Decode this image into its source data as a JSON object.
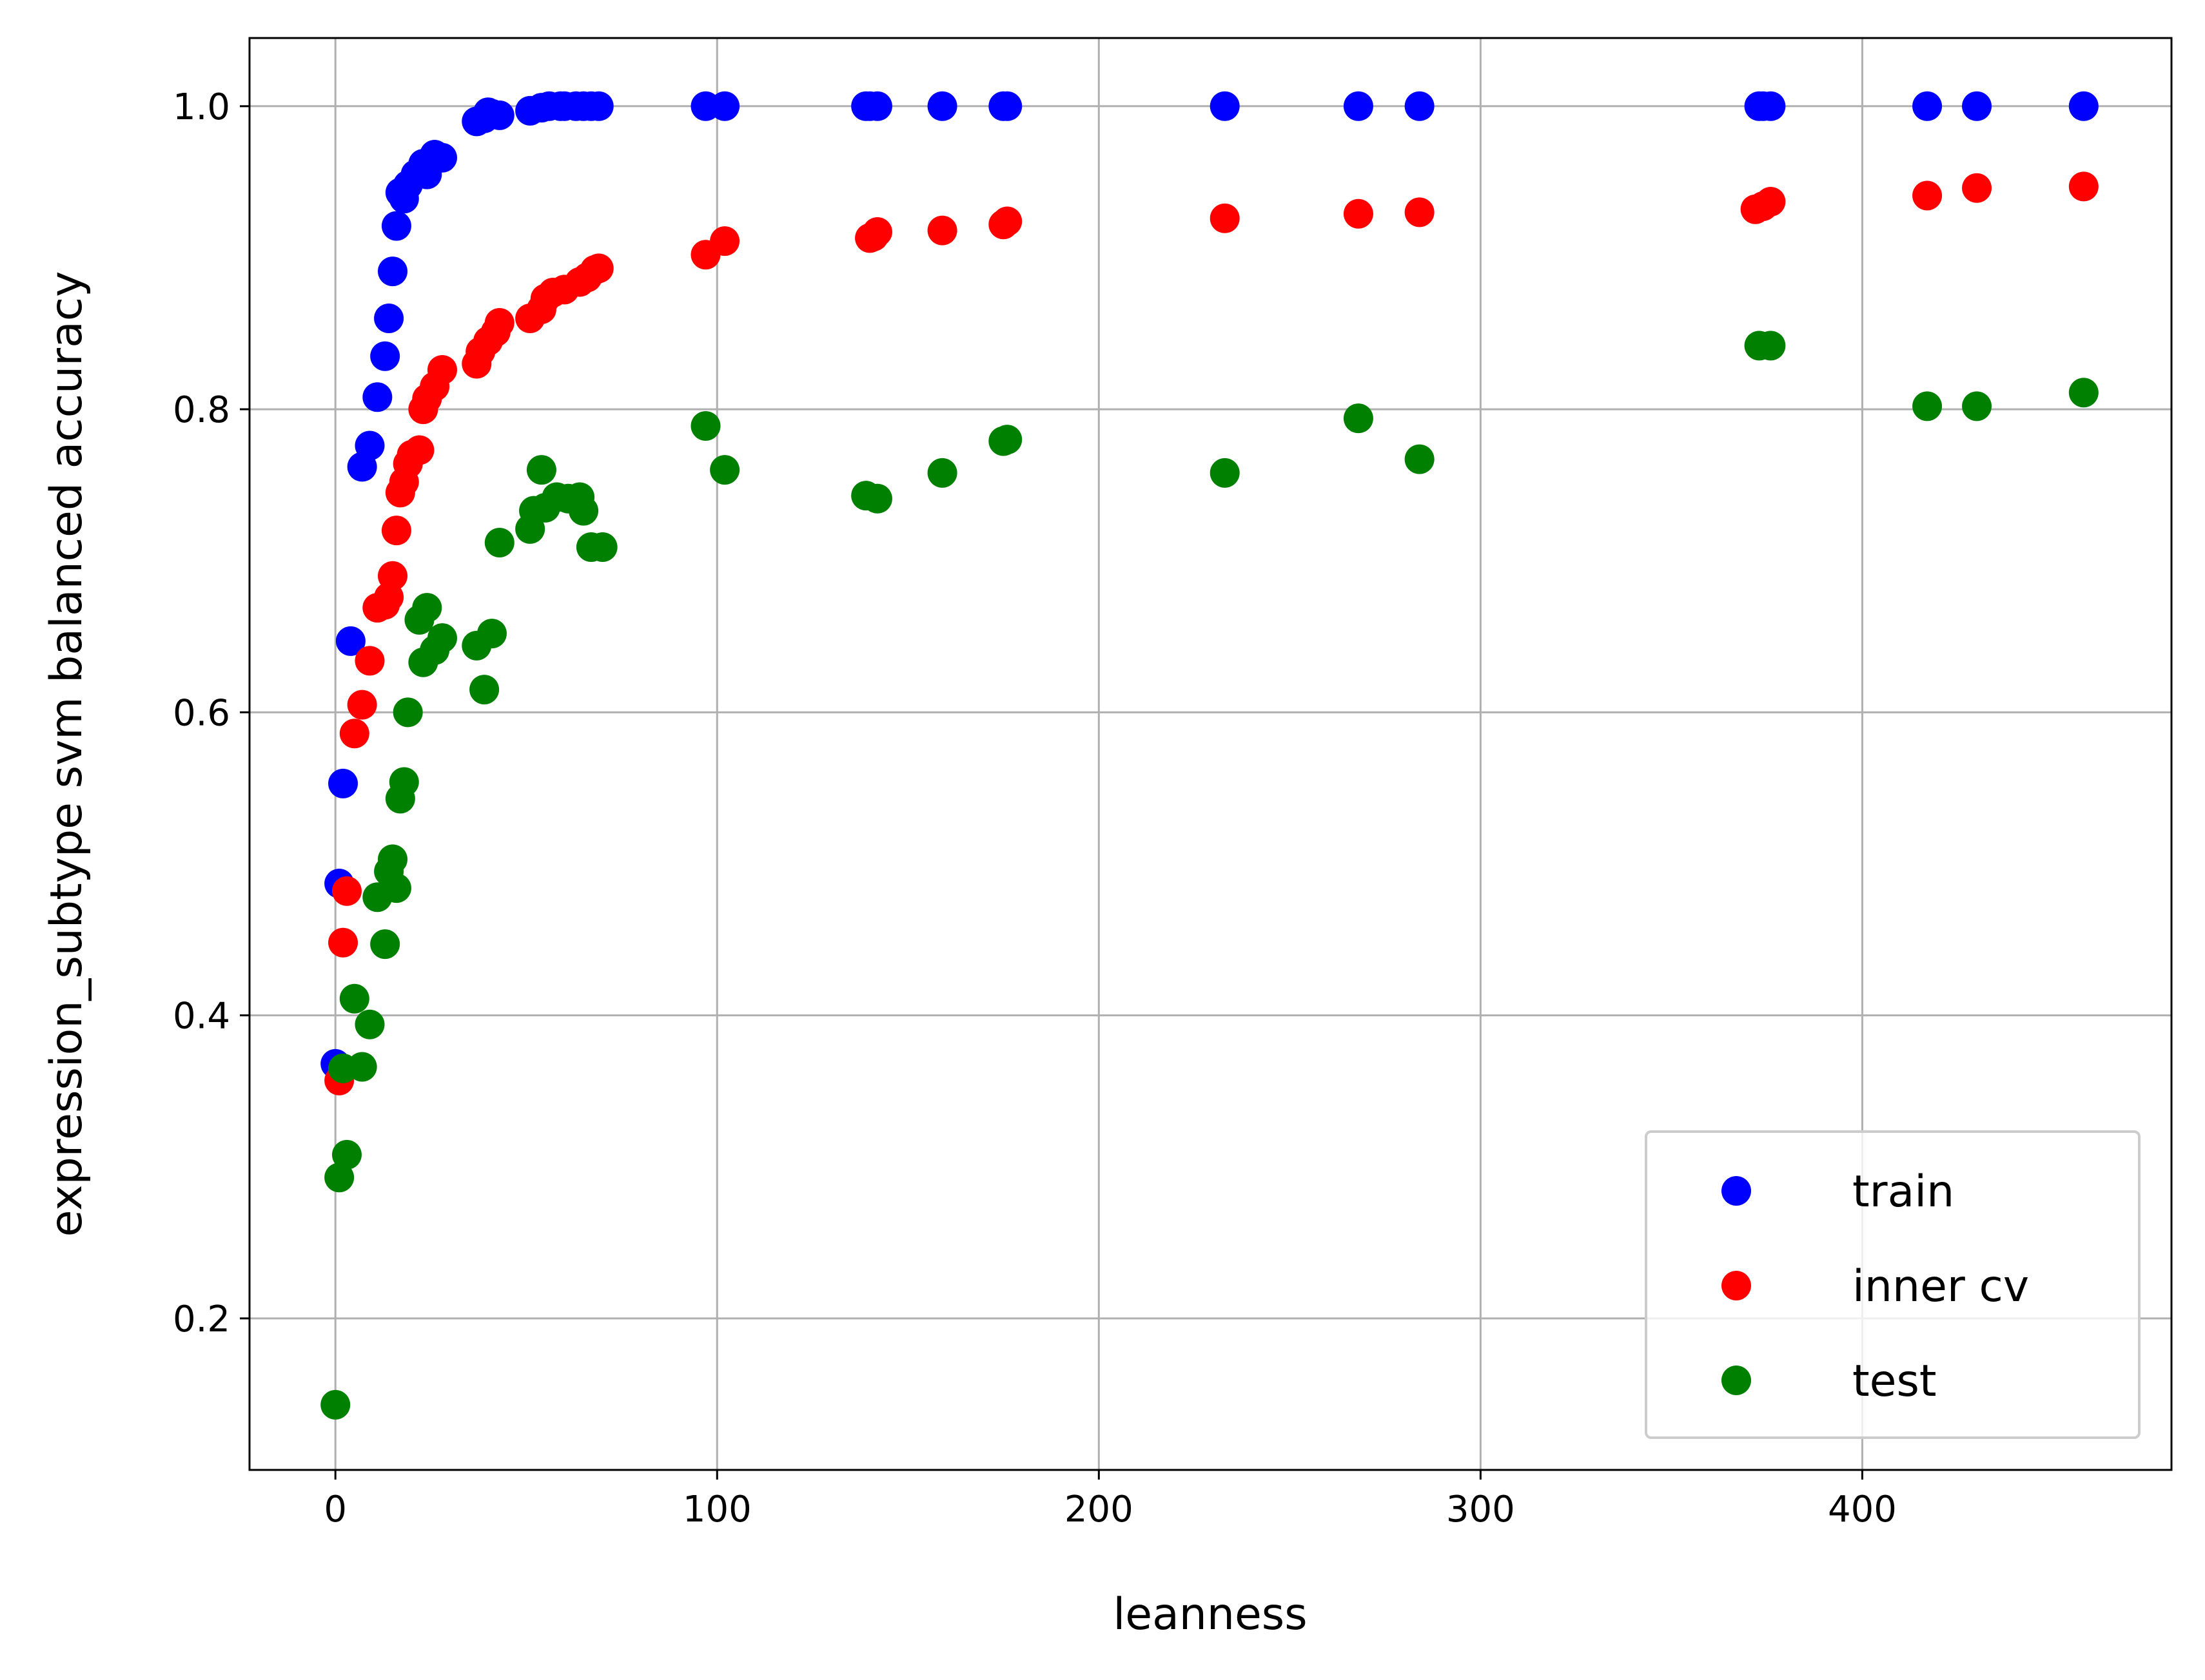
{
  "chart_data": {
    "type": "scatter",
    "title": "",
    "xlabel": "leanness",
    "ylabel": "expression_subtype svm balanced accuracy",
    "xlim": [
      -22.5,
      481
    ],
    "ylim": [
      0.1,
      1.045
    ],
    "xticks": [
      0,
      100,
      200,
      300,
      400
    ],
    "xtick_labels": [
      "0",
      "100",
      "200",
      "300",
      "400"
    ],
    "yticks": [
      0.2,
      0.4,
      0.6,
      0.8,
      1.0
    ],
    "ytick_labels": [
      "0.2",
      "0.4",
      "0.6",
      "0.8",
      "1.0"
    ],
    "grid": true,
    "legend_position": "lower-right",
    "series": [
      {
        "name": "train",
        "color": "#0000ff",
        "points": [
          [
            0,
            0.368
          ],
          [
            1,
            0.487
          ],
          [
            2,
            0.553
          ],
          [
            4,
            0.647
          ],
          [
            7,
            0.762
          ],
          [
            9,
            0.776
          ],
          [
            11,
            0.808
          ],
          [
            13,
            0.835
          ],
          [
            14,
            0.86
          ],
          [
            15,
            0.891
          ],
          [
            16,
            0.921
          ],
          [
            17,
            0.943
          ],
          [
            18,
            0.939
          ],
          [
            19,
            0.948
          ],
          [
            21,
            0.955
          ],
          [
            23,
            0.962
          ],
          [
            24,
            0.955
          ],
          [
            26,
            0.968
          ],
          [
            28,
            0.966
          ],
          [
            37,
            0.99
          ],
          [
            39,
            0.992
          ],
          [
            40,
            0.996
          ],
          [
            41,
            0.995
          ],
          [
            43,
            0.994
          ],
          [
            51,
            0.997
          ],
          [
            54,
            0.999
          ],
          [
            56,
            1.0
          ],
          [
            59,
            1.0
          ],
          [
            60,
            1.0
          ],
          [
            63,
            1.0
          ],
          [
            65,
            1.0
          ],
          [
            67,
            1.0
          ],
          [
            69,
            1.0
          ],
          [
            97,
            1.0
          ],
          [
            102,
            1.0
          ],
          [
            139,
            1.0
          ],
          [
            140,
            1.0
          ],
          [
            142,
            1.0
          ],
          [
            159,
            1.0
          ],
          [
            175,
            1.0
          ],
          [
            176,
            1.0
          ],
          [
            233,
            1.0
          ],
          [
            268,
            1.0
          ],
          [
            284,
            1.0
          ],
          [
            373,
            1.0
          ],
          [
            374,
            1.0
          ],
          [
            376,
            1.0
          ],
          [
            417,
            1.0
          ],
          [
            430,
            1.0
          ],
          [
            458,
            1.0
          ]
        ]
      },
      {
        "name": "inner cv",
        "color": "#ff0000",
        "points": [
          [
            1,
            0.357
          ],
          [
            2,
            0.448
          ],
          [
            3,
            0.482
          ],
          [
            5,
            0.586
          ],
          [
            7,
            0.605
          ],
          [
            9,
            0.634
          ],
          [
            11,
            0.669
          ],
          [
            13,
            0.671
          ],
          [
            14,
            0.676
          ],
          [
            15,
            0.69
          ],
          [
            16,
            0.72
          ],
          [
            17,
            0.745
          ],
          [
            18,
            0.752
          ],
          [
            19,
            0.764
          ],
          [
            20,
            0.77
          ],
          [
            22,
            0.773
          ],
          [
            23,
            0.8
          ],
          [
            24,
            0.807
          ],
          [
            26,
            0.815
          ],
          [
            28,
            0.826
          ],
          [
            37,
            0.83
          ],
          [
            38,
            0.838
          ],
          [
            40,
            0.845
          ],
          [
            42,
            0.851
          ],
          [
            43,
            0.857
          ],
          [
            51,
            0.86
          ],
          [
            54,
            0.866
          ],
          [
            55,
            0.873
          ],
          [
            57,
            0.877
          ],
          [
            60,
            0.879
          ],
          [
            64,
            0.884
          ],
          [
            66,
            0.887
          ],
          [
            68,
            0.892
          ],
          [
            69,
            0.893
          ],
          [
            97,
            0.902
          ],
          [
            102,
            0.911
          ],
          [
            140,
            0.913
          ],
          [
            141,
            0.914
          ],
          [
            142,
            0.917
          ],
          [
            159,
            0.918
          ],
          [
            175,
            0.922
          ],
          [
            176,
            0.924
          ],
          [
            233,
            0.926
          ],
          [
            268,
            0.929
          ],
          [
            284,
            0.93
          ],
          [
            372,
            0.932
          ],
          [
            374,
            0.934
          ],
          [
            376,
            0.937
          ],
          [
            417,
            0.941
          ],
          [
            430,
            0.946
          ],
          [
            458,
            0.947
          ]
        ]
      },
      {
        "name": "test",
        "color": "#008000",
        "points": [
          [
            0,
            0.143
          ],
          [
            1,
            0.293
          ],
          [
            2,
            0.365
          ],
          [
            3,
            0.308
          ],
          [
            5,
            0.411
          ],
          [
            7,
            0.366
          ],
          [
            9,
            0.394
          ],
          [
            11,
            0.478
          ],
          [
            13,
            0.447
          ],
          [
            14,
            0.495
          ],
          [
            15,
            0.503
          ],
          [
            16,
            0.484
          ],
          [
            17,
            0.543
          ],
          [
            18,
            0.554
          ],
          [
            19,
            0.6
          ],
          [
            22,
            0.661
          ],
          [
            23,
            0.633
          ],
          [
            24,
            0.669
          ],
          [
            26,
            0.641
          ],
          [
            28,
            0.649
          ],
          [
            37,
            0.644
          ],
          [
            39,
            0.615
          ],
          [
            41,
            0.652
          ],
          [
            43,
            0.712
          ],
          [
            51,
            0.721
          ],
          [
            52,
            0.733
          ],
          [
            54,
            0.76
          ],
          [
            55,
            0.735
          ],
          [
            58,
            0.742
          ],
          [
            61,
            0.741
          ],
          [
            64,
            0.742
          ],
          [
            65,
            0.733
          ],
          [
            67,
            0.709
          ],
          [
            70,
            0.709
          ],
          [
            97,
            0.789
          ],
          [
            102,
            0.76
          ],
          [
            139,
            0.743
          ],
          [
            142,
            0.741
          ],
          [
            159,
            0.758
          ],
          [
            175,
            0.779
          ],
          [
            176,
            0.78
          ],
          [
            233,
            0.758
          ],
          [
            268,
            0.794
          ],
          [
            284,
            0.767
          ],
          [
            373,
            0.842
          ],
          [
            376,
            0.842
          ],
          [
            417,
            0.802
          ],
          [
            430,
            0.802
          ],
          [
            458,
            0.811
          ]
        ]
      }
    ]
  }
}
